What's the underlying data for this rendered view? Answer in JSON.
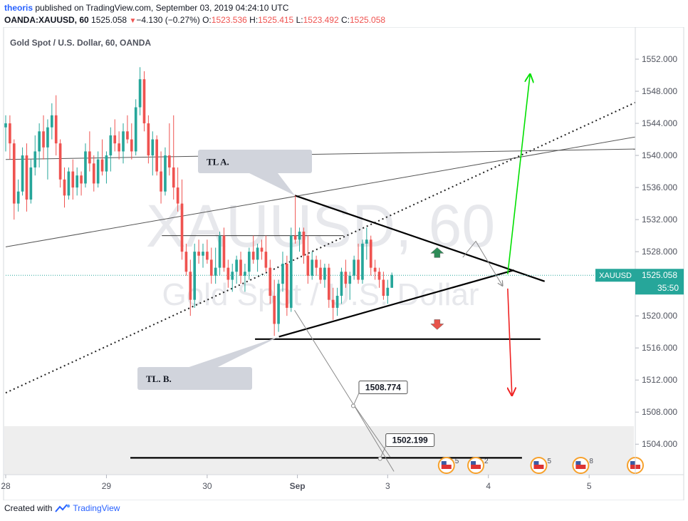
{
  "header": {
    "user": "theoris",
    "published_text": "published on TradingView.com, September 03, 2019 04:24:10 UTC",
    "symbol": "OANDA:XAUUSD, 60",
    "last": "1525.058",
    "change": "−4.130 (−0.27%)",
    "o_label": "O:",
    "o_value": "1523.536",
    "h_label": "H:",
    "h_value": "1525.415",
    "l_label": "L:",
    "l_value": "1523.492",
    "c_label": "C:",
    "c_value": "1525.058"
  },
  "footer": {
    "created_with": "Created with",
    "brand": "TradingView"
  },
  "colors": {
    "bull": "#26a69a",
    "bear": "#ef5350",
    "price_line": "#26a69a",
    "green_arrow": "#00e000",
    "red_arrow": "#ef2020",
    "callout_bg": "#d1d4dc"
  },
  "chart_data": {
    "type": "candlestick",
    "title": "Gold Spot / U.S. Dollar, 60, OANDA",
    "watermark_symbol": "XAUUSD, 60",
    "watermark_name": "Gold Spot / U.S. Dollar",
    "ylim": [
      1500.2,
      1556.0
    ],
    "y_ticks": [
      1504,
      1508,
      1512,
      1516,
      1520,
      1524,
      1528,
      1532,
      1536,
      1540,
      1544,
      1548,
      1552
    ],
    "y_tick_labels": [
      "1504.000",
      "1508.000",
      "1512.000",
      "1516.000",
      "1520.000",
      "1524.000",
      "1528.000",
      "1532.000",
      "1536.000",
      "1540.000",
      "1544.000",
      "1548.000",
      "1552.000"
    ],
    "x_range": [
      0,
      150
    ],
    "x_ticks": [
      {
        "x": 0,
        "label": "28"
      },
      {
        "x": 24,
        "label": "29"
      },
      {
        "x": 48,
        "label": "30"
      },
      {
        "x": 69.5,
        "label": "Sep"
      },
      {
        "x": 91,
        "label": "3"
      },
      {
        "x": 115,
        "label": "4"
      },
      {
        "x": 139,
        "label": "5"
      }
    ],
    "price_label": {
      "symbol": "XAUUSD",
      "value": "1525.058",
      "countdown": "35:50",
      "price": 1525.058
    },
    "annotations": [
      {
        "text": "TL A."
      },
      {
        "text": "TL. B."
      },
      {
        "text": "1508.774",
        "price": 1508.774
      },
      {
        "text": "1502.199",
        "price": 1502.199
      }
    ],
    "event_markers": [
      {
        "x": 105,
        "label": "5"
      },
      {
        "x": 112,
        "label": "2"
      },
      {
        "x": 127,
        "label": "5"
      },
      {
        "x": 137,
        "label": "8"
      },
      {
        "x": 150,
        "label": ""
      }
    ],
    "trendlines": [
      {
        "name": "long-rising-line",
        "p1": [
          0,
          1528.6
        ],
        "p2": [
          150,
          1542.3
        ],
        "style": "solid"
      },
      {
        "name": "upper-flat-line",
        "p1": [
          0,
          1539.5
        ],
        "p2": [
          150,
          1540.8
        ],
        "style": "solid"
      },
      {
        "name": "dotted-channel-line",
        "p1": [
          0,
          1510.4
        ],
        "p2": [
          150,
          1546.6
        ],
        "style": "dotted"
      },
      {
        "name": "triangle-upper",
        "p1": [
          68.9,
          1535.0
        ],
        "p2": [
          128.4,
          1524.3
        ],
        "style": "bold"
      },
      {
        "name": "triangle-lower",
        "p1": [
          65.1,
          1517.4
        ],
        "p2": [
          121.1,
          1525.7
        ],
        "style": "bold"
      },
      {
        "name": "resistance-1530",
        "p1": [
          37.2,
          1530.0
        ],
        "p2": [
          80.5,
          1530.0
        ],
        "style": "thin"
      },
      {
        "name": "support-1517",
        "p1": [
          59.4,
          1517.1
        ],
        "p2": [
          127.4,
          1517.1
        ],
        "style": "bold"
      },
      {
        "name": "support-1502",
        "p1": [
          29.7,
          1502.3
        ],
        "p2": [
          123.0,
          1502.3
        ],
        "style": "bold"
      }
    ],
    "candles": [
      {
        "o": 1543.5,
        "h": 1545.0,
        "l": 1540.5,
        "c": 1544.0
      },
      {
        "o": 1544.0,
        "h": 1545.0,
        "l": 1539.5,
        "c": 1541.5
      },
      {
        "o": 1541.5,
        "h": 1542.0,
        "l": 1532.0,
        "c": 1534.0
      },
      {
        "o": 1534.0,
        "h": 1537.0,
        "l": 1533.0,
        "c": 1535.5
      },
      {
        "o": 1535.5,
        "h": 1541.0,
        "l": 1535.0,
        "c": 1540.0
      },
      {
        "o": 1540.0,
        "h": 1541.5,
        "l": 1533.0,
        "c": 1534.5
      },
      {
        "o": 1534.5,
        "h": 1539.5,
        "l": 1534.0,
        "c": 1538.5
      },
      {
        "o": 1538.5,
        "h": 1542.5,
        "l": 1537.5,
        "c": 1540.5
      },
      {
        "o": 1540.5,
        "h": 1544.0,
        "l": 1538.5,
        "c": 1543.0
      },
      {
        "o": 1543.0,
        "h": 1545.0,
        "l": 1539.5,
        "c": 1541.0
      },
      {
        "o": 1541.0,
        "h": 1544.5,
        "l": 1537.0,
        "c": 1543.5
      },
      {
        "o": 1543.5,
        "h": 1546.5,
        "l": 1542.0,
        "c": 1545.0
      },
      {
        "o": 1545.0,
        "h": 1547.5,
        "l": 1540.0,
        "c": 1541.5
      },
      {
        "o": 1541.5,
        "h": 1542.0,
        "l": 1536.0,
        "c": 1537.0
      },
      {
        "o": 1537.0,
        "h": 1538.5,
        "l": 1533.5,
        "c": 1535.0
      },
      {
        "o": 1535.0,
        "h": 1538.5,
        "l": 1534.5,
        "c": 1538.0
      },
      {
        "o": 1538.0,
        "h": 1539.5,
        "l": 1534.5,
        "c": 1536.0
      },
      {
        "o": 1536.0,
        "h": 1538.5,
        "l": 1535.0,
        "c": 1537.5
      },
      {
        "o": 1537.5,
        "h": 1538.0,
        "l": 1535.0,
        "c": 1536.5
      },
      {
        "o": 1536.5,
        "h": 1541.5,
        "l": 1536.0,
        "c": 1540.5
      },
      {
        "o": 1540.5,
        "h": 1543.0,
        "l": 1538.0,
        "c": 1539.0
      },
      {
        "o": 1539.0,
        "h": 1540.0,
        "l": 1535.5,
        "c": 1536.5
      },
      {
        "o": 1536.5,
        "h": 1540.5,
        "l": 1536.0,
        "c": 1539.5
      },
      {
        "o": 1539.5,
        "h": 1542.0,
        "l": 1537.5,
        "c": 1538.0
      },
      {
        "o": 1538.0,
        "h": 1540.5,
        "l": 1536.5,
        "c": 1540.0
      },
      {
        "o": 1540.0,
        "h": 1543.5,
        "l": 1538.0,
        "c": 1542.5
      },
      {
        "o": 1542.5,
        "h": 1544.5,
        "l": 1540.5,
        "c": 1541.5
      },
      {
        "o": 1541.5,
        "h": 1543.0,
        "l": 1539.5,
        "c": 1540.5
      },
      {
        "o": 1540.5,
        "h": 1544.0,
        "l": 1539.0,
        "c": 1543.0
      },
      {
        "o": 1543.0,
        "h": 1545.0,
        "l": 1541.5,
        "c": 1542.0
      },
      {
        "o": 1542.0,
        "h": 1544.0,
        "l": 1539.5,
        "c": 1540.5
      },
      {
        "o": 1540.5,
        "h": 1547.0,
        "l": 1540.0,
        "c": 1546.0
      },
      {
        "o": 1546.0,
        "h": 1551.0,
        "l": 1545.0,
        "c": 1549.5
      },
      {
        "o": 1549.5,
        "h": 1550.5,
        "l": 1543.0,
        "c": 1544.0
      },
      {
        "o": 1544.0,
        "h": 1545.0,
        "l": 1539.0,
        "c": 1540.0
      },
      {
        "o": 1540.0,
        "h": 1543.0,
        "l": 1537.5,
        "c": 1542.0
      },
      {
        "o": 1542.0,
        "h": 1542.5,
        "l": 1537.5,
        "c": 1538.0
      },
      {
        "o": 1538.0,
        "h": 1540.5,
        "l": 1534.0,
        "c": 1535.5
      },
      {
        "o": 1535.5,
        "h": 1541.0,
        "l": 1535.0,
        "c": 1540.0
      },
      {
        "o": 1540.0,
        "h": 1544.0,
        "l": 1537.5,
        "c": 1538.5
      },
      {
        "o": 1538.5,
        "h": 1545.0,
        "l": 1534.5,
        "c": 1536.0
      },
      {
        "o": 1536.0,
        "h": 1538.5,
        "l": 1533.0,
        "c": 1534.0
      },
      {
        "o": 1534.0,
        "h": 1537.0,
        "l": 1527.0,
        "c": 1528.0
      },
      {
        "o": 1528.0,
        "h": 1529.0,
        "l": 1525.0,
        "c": 1525.5
      },
      {
        "o": 1525.5,
        "h": 1527.0,
        "l": 1520.0,
        "c": 1522.0
      },
      {
        "o": 1522.0,
        "h": 1529.0,
        "l": 1521.0,
        "c": 1528.0
      },
      {
        "o": 1528.0,
        "h": 1529.5,
        "l": 1526.5,
        "c": 1527.5
      },
      {
        "o": 1527.5,
        "h": 1529.0,
        "l": 1526.0,
        "c": 1528.0
      },
      {
        "o": 1528.0,
        "h": 1529.5,
        "l": 1526.5,
        "c": 1527.0
      },
      {
        "o": 1527.0,
        "h": 1528.5,
        "l": 1524.0,
        "c": 1525.0
      },
      {
        "o": 1525.0,
        "h": 1528.5,
        "l": 1524.0,
        "c": 1526.0
      },
      {
        "o": 1526.0,
        "h": 1530.5,
        "l": 1525.0,
        "c": 1530.0
      },
      {
        "o": 1530.0,
        "h": 1531.0,
        "l": 1525.5,
        "c": 1526.0
      },
      {
        "o": 1526.0,
        "h": 1527.0,
        "l": 1523.5,
        "c": 1524.5
      },
      {
        "o": 1524.5,
        "h": 1526.5,
        "l": 1523.0,
        "c": 1525.5
      },
      {
        "o": 1525.5,
        "h": 1527.5,
        "l": 1524.0,
        "c": 1527.0
      },
      {
        "o": 1527.0,
        "h": 1528.0,
        "l": 1524.0,
        "c": 1525.0
      },
      {
        "o": 1525.0,
        "h": 1526.5,
        "l": 1523.0,
        "c": 1525.5
      },
      {
        "o": 1525.5,
        "h": 1528.5,
        "l": 1524.5,
        "c": 1528.0
      },
      {
        "o": 1528.0,
        "h": 1530.0,
        "l": 1526.5,
        "c": 1527.0
      },
      {
        "o": 1527.0,
        "h": 1529.0,
        "l": 1525.5,
        "c": 1528.5
      },
      {
        "o": 1528.5,
        "h": 1529.5,
        "l": 1527.0,
        "c": 1528.0
      },
      {
        "o": 1528.0,
        "h": 1530.0,
        "l": 1525.5,
        "c": 1526.0
      },
      {
        "o": 1526.0,
        "h": 1527.0,
        "l": 1521.5,
        "c": 1522.5
      },
      {
        "o": 1522.5,
        "h": 1524.5,
        "l": 1517.5,
        "c": 1519.0
      },
      {
        "o": 1519.0,
        "h": 1524.5,
        "l": 1518.0,
        "c": 1524.0
      },
      {
        "o": 1524.0,
        "h": 1528.0,
        "l": 1523.0,
        "c": 1526.5
      },
      {
        "o": 1526.5,
        "h": 1527.5,
        "l": 1520.0,
        "c": 1521.0
      },
      {
        "o": 1521.0,
        "h": 1531.0,
        "l": 1520.5,
        "c": 1530.0
      },
      {
        "o": 1530.0,
        "h": 1535.0,
        "l": 1529.0,
        "c": 1529.5
      },
      {
        "o": 1529.5,
        "h": 1531.0,
        "l": 1528.0,
        "c": 1530.5
      },
      {
        "o": 1530.5,
        "h": 1531.0,
        "l": 1526.5,
        "c": 1527.5
      },
      {
        "o": 1527.5,
        "h": 1530.0,
        "l": 1524.0,
        "c": 1525.0
      },
      {
        "o": 1525.0,
        "h": 1528.0,
        "l": 1524.5,
        "c": 1527.0
      },
      {
        "o": 1527.0,
        "h": 1527.5,
        "l": 1525.0,
        "c": 1526.0
      },
      {
        "o": 1526.0,
        "h": 1527.0,
        "l": 1524.0,
        "c": 1524.5
      },
      {
        "o": 1524.5,
        "h": 1526.5,
        "l": 1523.5,
        "c": 1526.0
      },
      {
        "o": 1526.0,
        "h": 1526.5,
        "l": 1521.0,
        "c": 1522.0
      },
      {
        "o": 1522.0,
        "h": 1523.5,
        "l": 1519.5,
        "c": 1521.0
      },
      {
        "o": 1521.0,
        "h": 1523.5,
        "l": 1520.0,
        "c": 1522.5
      },
      {
        "o": 1522.5,
        "h": 1526.0,
        "l": 1521.5,
        "c": 1525.5
      },
      {
        "o": 1525.5,
        "h": 1527.0,
        "l": 1523.5,
        "c": 1524.0
      },
      {
        "o": 1524.0,
        "h": 1525.5,
        "l": 1522.0,
        "c": 1525.0
      },
      {
        "o": 1525.0,
        "h": 1527.5,
        "l": 1524.5,
        "c": 1527.0
      },
      {
        "o": 1527.0,
        "h": 1529.0,
        "l": 1524.0,
        "c": 1524.5
      },
      {
        "o": 1524.5,
        "h": 1529.5,
        "l": 1524.0,
        "c": 1529.0
      },
      {
        "o": 1529.0,
        "h": 1531.0,
        "l": 1527.0,
        "c": 1529.5
      },
      {
        "o": 1529.5,
        "h": 1530.0,
        "l": 1525.0,
        "c": 1526.0
      },
      {
        "o": 1526.0,
        "h": 1527.0,
        "l": 1524.5,
        "c": 1525.5
      },
      {
        "o": 1525.5,
        "h": 1526.0,
        "l": 1523.5,
        "c": 1524.5
      },
      {
        "o": 1524.5,
        "h": 1525.5,
        "l": 1522.0,
        "c": 1522.5
      },
      {
        "o": 1522.5,
        "h": 1524.5,
        "l": 1521.5,
        "c": 1523.5
      },
      {
        "o": 1523.5,
        "h": 1525.4,
        "l": 1523.5,
        "c": 1525.1
      }
    ]
  }
}
